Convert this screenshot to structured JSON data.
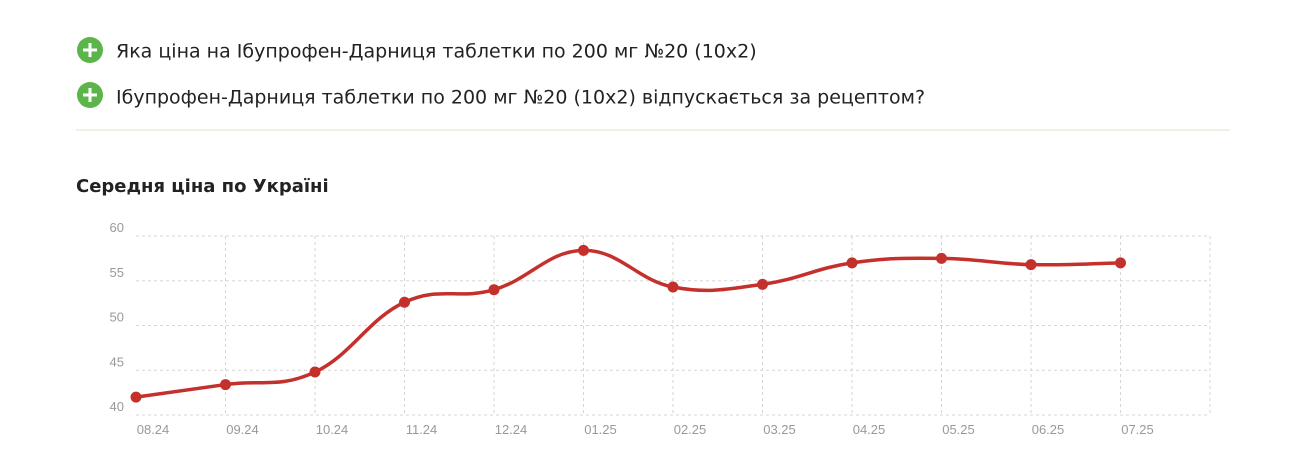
{
  "faq": [
    "Яка ціна на Ібупрофен-Дарниця таблетки по 200 мг №20 (10x2)",
    "Ібупрофен-Дарниця таблетки по 200 мг №20 (10x2) відпускається за рецептом?"
  ],
  "chart_data": {
    "type": "line",
    "title": "Середня ціна по Україні",
    "categories": [
      "08.24",
      "09.24",
      "10.24",
      "11.24",
      "12.24",
      "01.25",
      "02.25",
      "03.25",
      "04.25",
      "05.25",
      "06.25",
      "07.25"
    ],
    "values": [
      42.0,
      43.4,
      44.8,
      52.6,
      54.0,
      58.4,
      54.3,
      54.6,
      57.0,
      57.5,
      56.8,
      57.0
    ],
    "color": "#c4302b",
    "ylim": [
      40,
      60
    ],
    "yticks": [
      40,
      45,
      50,
      55,
      60
    ],
    "grid": true
  }
}
